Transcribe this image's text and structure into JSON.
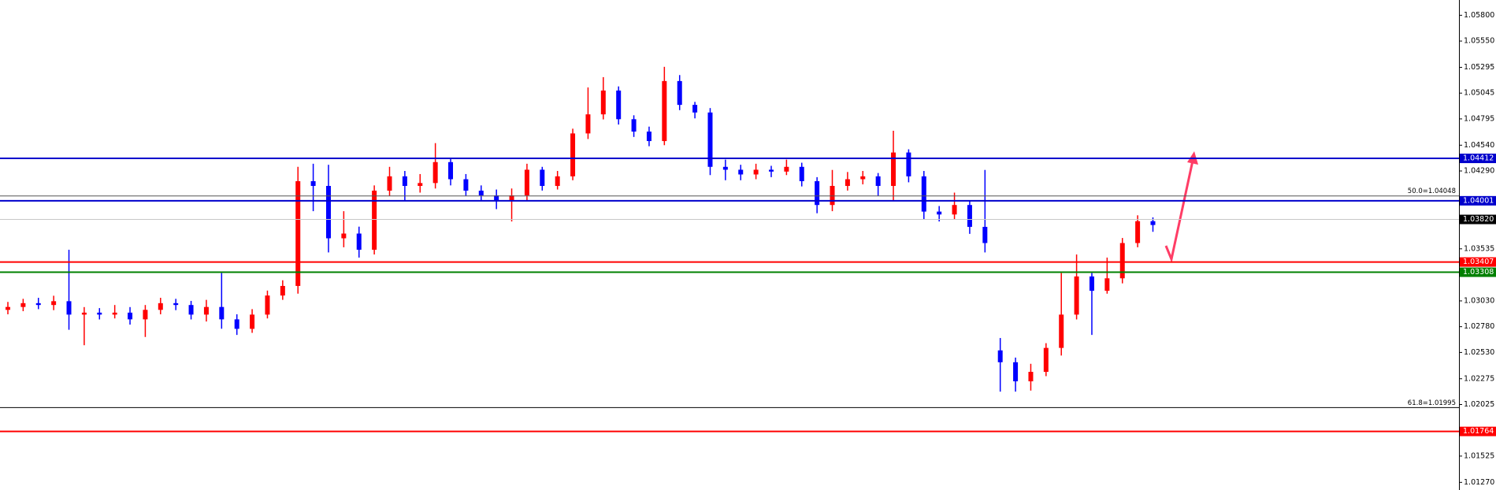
{
  "chart_data": {
    "type": "candlestick",
    "up_color": "#ff0000",
    "down_color": "#0000ff",
    "ylim": [
      1.01196,
      1.05948
    ],
    "yticks": [
      {
        "value": 1.058,
        "label": "1.05800"
      },
      {
        "value": 1.0555,
        "label": "1.05550"
      },
      {
        "value": 1.05295,
        "label": "1.05295"
      },
      {
        "value": 1.05045,
        "label": "1.05045"
      },
      {
        "value": 1.04795,
        "label": "1.04795"
      },
      {
        "value": 1.0454,
        "label": "1.04540"
      },
      {
        "value": 1.0429,
        "label": "1.04290"
      },
      {
        "value": 1.03535,
        "label": "1.03535"
      },
      {
        "value": 1.0303,
        "label": "1.03030"
      },
      {
        "value": 1.0278,
        "label": "1.02780"
      },
      {
        "value": 1.0253,
        "label": "1.02530"
      },
      {
        "value": 1.02275,
        "label": "1.02275"
      },
      {
        "value": 1.02025,
        "label": "1.02025"
      },
      {
        "value": 1.01525,
        "label": "1.01525"
      },
      {
        "value": 1.0127,
        "label": "1.01270"
      }
    ],
    "open": [
      1.02943,
      1.02971,
      1.03008,
      1.0299,
      1.03027,
      1.02897,
      1.02916,
      1.02897,
      1.02916,
      1.02851,
      1.02943,
      1.03008,
      1.0299,
      1.02897,
      1.02971,
      1.02851,
      1.02759,
      1.02897,
      1.03082,
      1.03175,
      1.04191,
      1.04145,
      1.03637,
      1.03683,
      1.03526,
      1.04099,
      1.04238,
      1.04145,
      1.04173,
      1.04376,
      1.0421,
      1.04099,
      1.04053,
      1.04007,
      1.04053,
      1.04302,
      1.04145,
      1.04238,
      1.04654,
      1.04839,
      1.0507,
      1.04792,
      1.04672,
      1.0458,
      1.05162,
      1.04931,
      1.04857,
      1.0433,
      1.04302,
      1.04256,
      1.04302,
      1.04284,
      1.0433,
      1.04191,
      1.0396,
      1.04145,
      1.0421,
      1.04238,
      1.04145,
      1.04469,
      1.04238,
      1.03896,
      1.03868,
      1.0396,
      1.03748,
      1.0255,
      1.02435,
      1.0225,
      1.02342,
      1.02574,
      1.02897,
      1.03267,
      1.03128,
      1.03249,
      1.03591,
      1.03803
    ],
    "high": [
      1.0302,
      1.0305,
      1.0306,
      1.0308,
      1.03526,
      1.0297,
      1.0296,
      1.0299,
      1.0297,
      1.0299,
      1.0306,
      1.0305,
      1.0303,
      1.0304,
      1.033,
      1.029,
      1.0295,
      1.0313,
      1.0323,
      1.0433,
      1.0436,
      1.0435,
      1.039,
      1.0375,
      1.0415,
      1.0433,
      1.0429,
      1.0426,
      1.0456,
      1.0442,
      1.0426,
      1.0415,
      1.0411,
      1.0412,
      1.0436,
      1.0433,
      1.0429,
      1.047,
      1.051,
      1.052,
      1.0511,
      1.0483,
      1.0472,
      1.053,
      1.0522,
      1.0496,
      1.049,
      1.044,
      1.0435,
      1.0436,
      1.0434,
      1.044,
      1.0437,
      1.0423,
      1.043,
      1.0428,
      1.0429,
      1.0427,
      1.0468,
      1.045,
      1.0429,
      1.0395,
      1.0408,
      1.04,
      1.043,
      1.0267,
      1.0248,
      1.0242,
      1.0262,
      1.033,
      1.0348,
      1.033,
      1.0345,
      1.0364,
      1.0386,
      1.0384
    ],
    "low": [
      1.029,
      1.0293,
      1.0295,
      1.0294,
      1.0275,
      1.026,
      1.0285,
      1.0286,
      1.028,
      1.0268,
      1.029,
      1.0294,
      1.0285,
      1.0283,
      1.0276,
      1.027,
      1.0272,
      1.0286,
      1.0304,
      1.031,
      1.039,
      1.035,
      1.0355,
      1.0345,
      1.0348,
      1.0405,
      1.04,
      1.0408,
      1.0412,
      1.0415,
      1.0405,
      1.04,
      1.0392,
      1.038,
      1.04,
      1.041,
      1.0411,
      1.042,
      1.046,
      1.0479,
      1.0474,
      1.0462,
      1.0453,
      1.0454,
      1.0488,
      1.048,
      1.0425,
      1.042,
      1.042,
      1.0421,
      1.0423,
      1.0425,
      1.0414,
      1.0388,
      1.039,
      1.041,
      1.0416,
      1.0405,
      1.04,
      1.0418,
      1.0382,
      1.038,
      1.0382,
      1.0368,
      1.035,
      1.0215,
      1.0215,
      1.0216,
      1.023,
      1.025,
      1.0285,
      1.027,
      1.031,
      1.032,
      1.0355,
      1.037
    ],
    "close": [
      1.02971,
      1.03008,
      1.0299,
      1.03027,
      1.02897,
      1.02916,
      1.02897,
      1.02916,
      1.02851,
      1.02943,
      1.03008,
      1.0299,
      1.02897,
      1.02971,
      1.02851,
      1.02759,
      1.02897,
      1.03082,
      1.03175,
      1.04191,
      1.04145,
      1.03637,
      1.03683,
      1.03526,
      1.04099,
      1.04238,
      1.04145,
      1.04173,
      1.04376,
      1.0421,
      1.04099,
      1.04053,
      1.04007,
      1.04053,
      1.04302,
      1.04145,
      1.04238,
      1.04654,
      1.04839,
      1.0507,
      1.04792,
      1.04672,
      1.0458,
      1.05162,
      1.04931,
      1.04857,
      1.0433,
      1.04302,
      1.04256,
      1.04302,
      1.04284,
      1.0433,
      1.04191,
      1.0396,
      1.04145,
      1.0421,
      1.04238,
      1.04145,
      1.04469,
      1.04238,
      1.03896,
      1.03868,
      1.0396,
      1.03748,
      1.03591,
      1.02435,
      1.0225,
      1.02342,
      1.02574,
      1.02897,
      1.03267,
      1.03128,
      1.03249,
      1.03591,
      1.03803,
      1.03766
    ],
    "levels": [
      {
        "value": 1.04412,
        "label": "1.04412",
        "color": "#0000cc"
      },
      {
        "value": 1.04001,
        "label": "1.04001",
        "color": "#0000cc"
      },
      {
        "value": 1.0382,
        "label": "1.03820",
        "color": "#000000"
      },
      {
        "value": 1.03407,
        "label": "1.03407",
        "color": "#ff0000"
      },
      {
        "value": 1.03308,
        "label": "1.03308",
        "color": "#008000"
      },
      {
        "value": 1.01764,
        "label": "1.01764",
        "color": "#ff0000"
      }
    ],
    "fib_levels": [
      {
        "value": 1.04048,
        "label": "50.0=1.04048"
      },
      {
        "value": 1.01995,
        "label": "61.8=1.01995"
      }
    ]
  }
}
